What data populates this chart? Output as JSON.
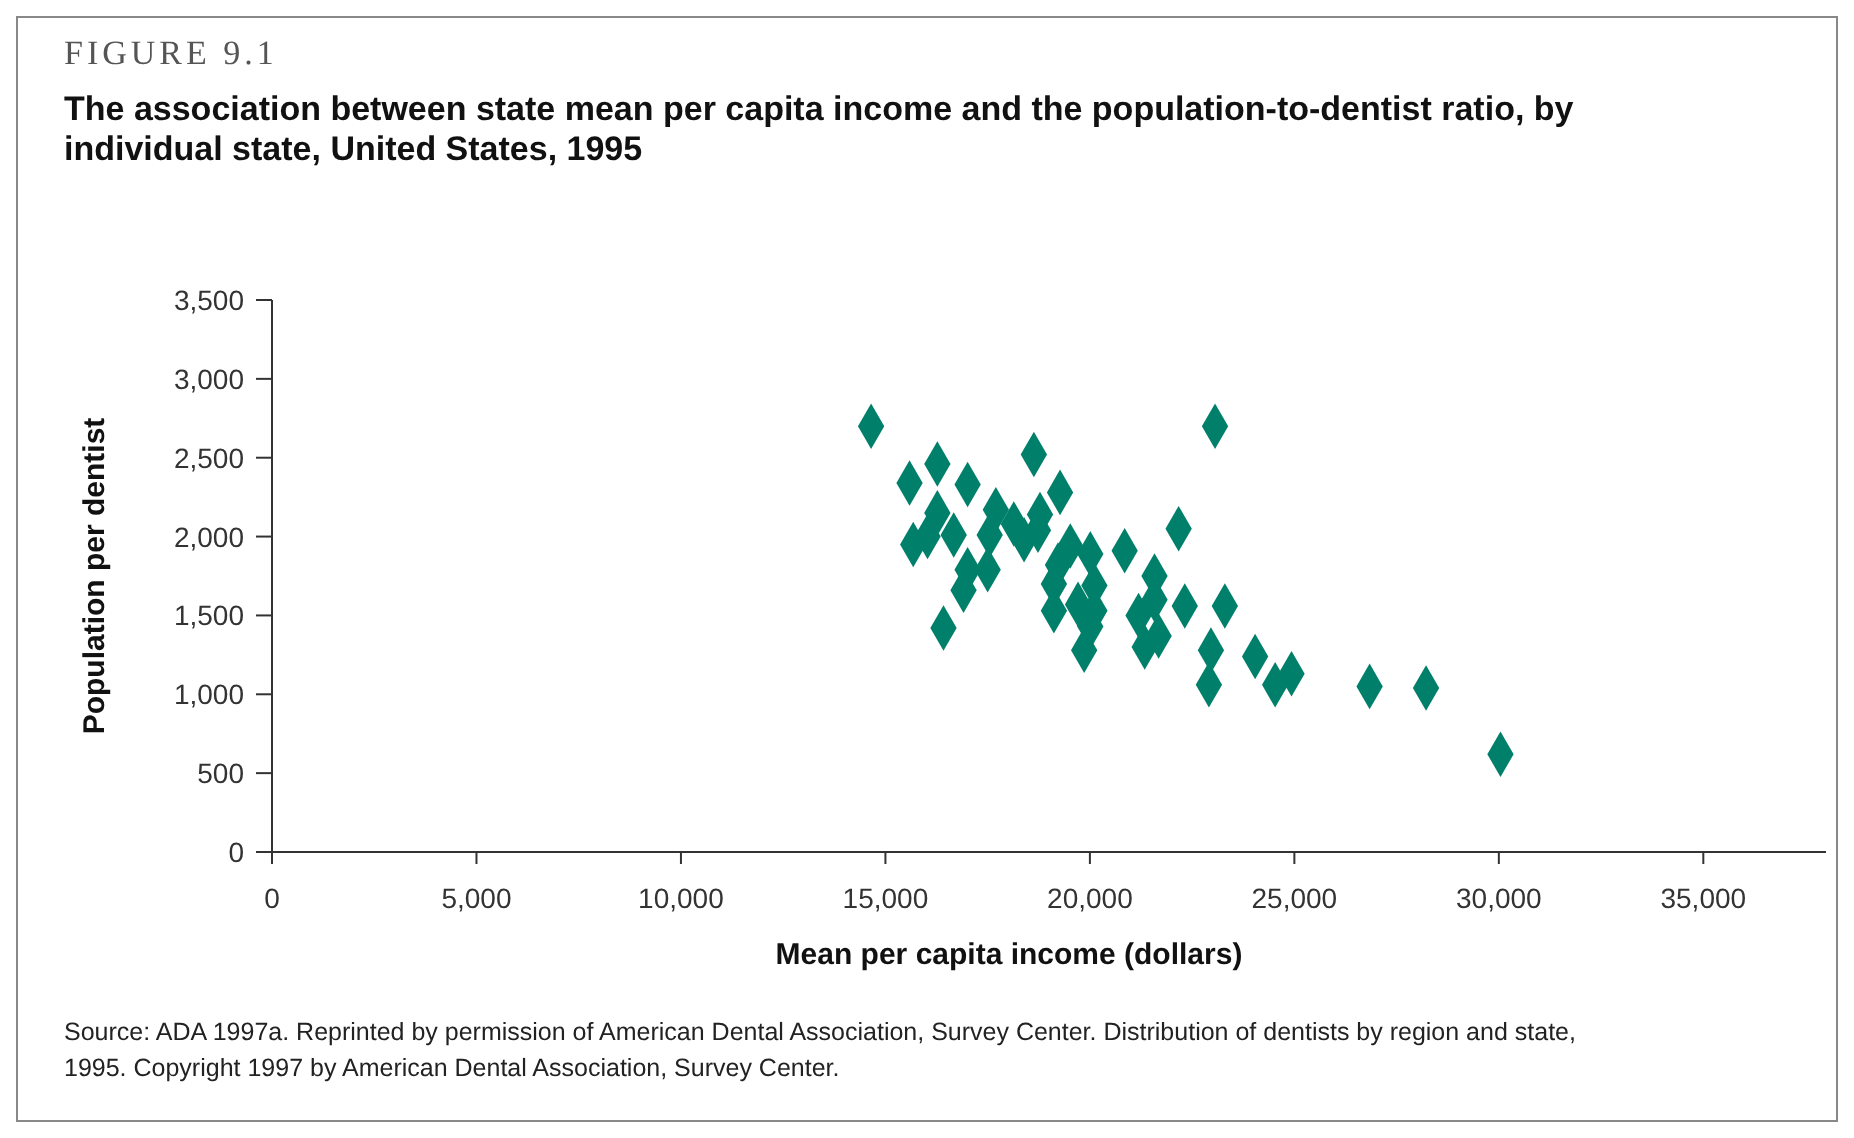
{
  "chart_data": {
    "type": "scatter",
    "title": "FIGURE 9.1",
    "subtitle": "The association between state mean per capita income and the population-to-dentist ratio, by individual state, United States, 1995",
    "xlabel": "Mean per capita income (dollars)",
    "ylabel": "Population per dentist",
    "annotations": [
      "Source: ADA 1997a. Reprinted by permission of American Dental Association, Survey Center. Distribution of dentists by region and state, 1995. Copyright 1997 by American Dental Association, Survey Center."
    ],
    "xlim": [
      0,
      38000
    ],
    "xticks": [
      {
        "value": 0,
        "label": "0"
      },
      {
        "value": 5000,
        "label": "5,000"
      },
      {
        "value": 10000,
        "label": "10,000"
      },
      {
        "value": 15000,
        "label": "15,000"
      },
      {
        "value": 20000,
        "label": "20,000"
      },
      {
        "value": 25000,
        "label": "25,000"
      },
      {
        "value": 30000,
        "label": "30,000"
      },
      {
        "value": 35000,
        "label": "35,000"
      }
    ],
    "ylim": [
      0,
      3500
    ],
    "yticks": [
      {
        "value": 0,
        "label": "0"
      },
      {
        "value": 500,
        "label": "500"
      },
      {
        "value": 1000,
        "label": "1,000"
      },
      {
        "value": 1500,
        "label": "1,500"
      },
      {
        "value": 2000,
        "label": "2,000"
      },
      {
        "value": 2500,
        "label": "2,500"
      },
      {
        "value": 3000,
        "label": "3,000"
      },
      {
        "value": 3500,
        "label": "3,500"
      }
    ],
    "grid": false,
    "marker": "diamond",
    "series": [
      {
        "color": "#00806a",
        "x": [
          14650,
          23060,
          18630,
          16270,
          15590,
          17010,
          19270,
          16270,
          17700,
          18780,
          22170,
          15680,
          16670,
          17550,
          18390,
          18730,
          19520,
          20010,
          20850,
          19220,
          17010,
          17500,
          21580,
          16910,
          19120,
          20110,
          19710,
          21580,
          22320,
          23300,
          19120,
          20110,
          21190,
          20010,
          16420,
          19860,
          21340,
          21680,
          22960,
          22910,
          24040,
          24930,
          24530,
          26840,
          28220,
          30040,
          16030,
          18140
        ],
        "values": [
          2700,
          2700,
          2520,
          2460,
          2340,
          2330,
          2280,
          2150,
          2170,
          2140,
          2050,
          1950,
          2010,
          2010,
          1980,
          2040,
          1940,
          1890,
          1910,
          1820,
          1790,
          1790,
          1750,
          1660,
          1700,
          1690,
          1570,
          1600,
          1560,
          1560,
          1530,
          1530,
          1500,
          1430,
          1420,
          1280,
          1300,
          1370,
          1280,
          1060,
          1240,
          1130,
          1060,
          1050,
          1040,
          620,
          2000,
          2080
        ]
      }
    ]
  }
}
